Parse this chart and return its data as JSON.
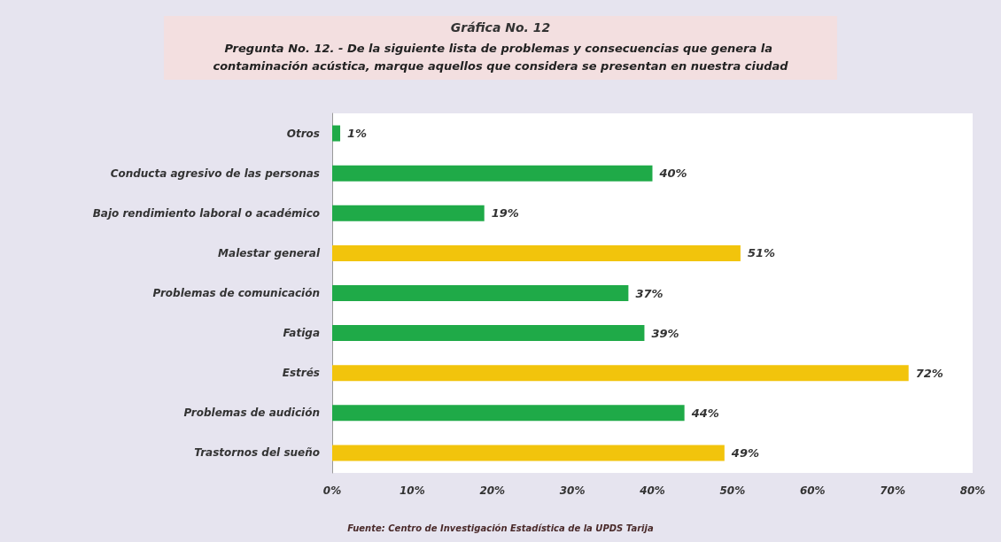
{
  "chart_data": {
    "type": "bar",
    "orientation": "horizontal",
    "title": "Gráfica No. 12",
    "subtitle": "Pregunta No. 12. - De la siguiente lista de problemas y consecuencias que genera la contaminación acústica, marque aquellos que considera se presentan en nuestra ciudad",
    "categories": [
      "Otros",
      "Conducta agresivo de las personas",
      "Bajo rendimiento laboral o académico",
      "Malestar general",
      "Problemas de comunicación",
      "Fatiga",
      "Estrés",
      "Problemas de audición",
      "Trastornos del sueño"
    ],
    "values": [
      1,
      40,
      19,
      51,
      37,
      39,
      72,
      44,
      49
    ],
    "colors": [
      "#1faa48",
      "#1faa48",
      "#1faa48",
      "#f2c40c",
      "#1faa48",
      "#1faa48",
      "#f2c40c",
      "#1faa48",
      "#f2c40c"
    ],
    "value_labels": [
      "1%",
      "40%",
      "19%",
      "51%",
      "37%",
      "39%",
      "72%",
      "44%",
      "49%"
    ],
    "xlim": [
      0,
      80
    ],
    "xticks": [
      {
        "value": 0,
        "label": "0%"
      },
      {
        "value": 10,
        "label": "10%"
      },
      {
        "value": 20,
        "label": "20%"
      },
      {
        "value": 30,
        "label": "30%"
      },
      {
        "value": 40,
        "label": "40%"
      },
      {
        "value": 50,
        "label": "50%"
      },
      {
        "value": 60,
        "label": "60%"
      },
      {
        "value": 70,
        "label": "70%"
      },
      {
        "value": 80,
        "label": "80%"
      }
    ],
    "annotations": [
      "Fuente: Centro de Investigación Estadística de la UPDS Tarija"
    ]
  }
}
